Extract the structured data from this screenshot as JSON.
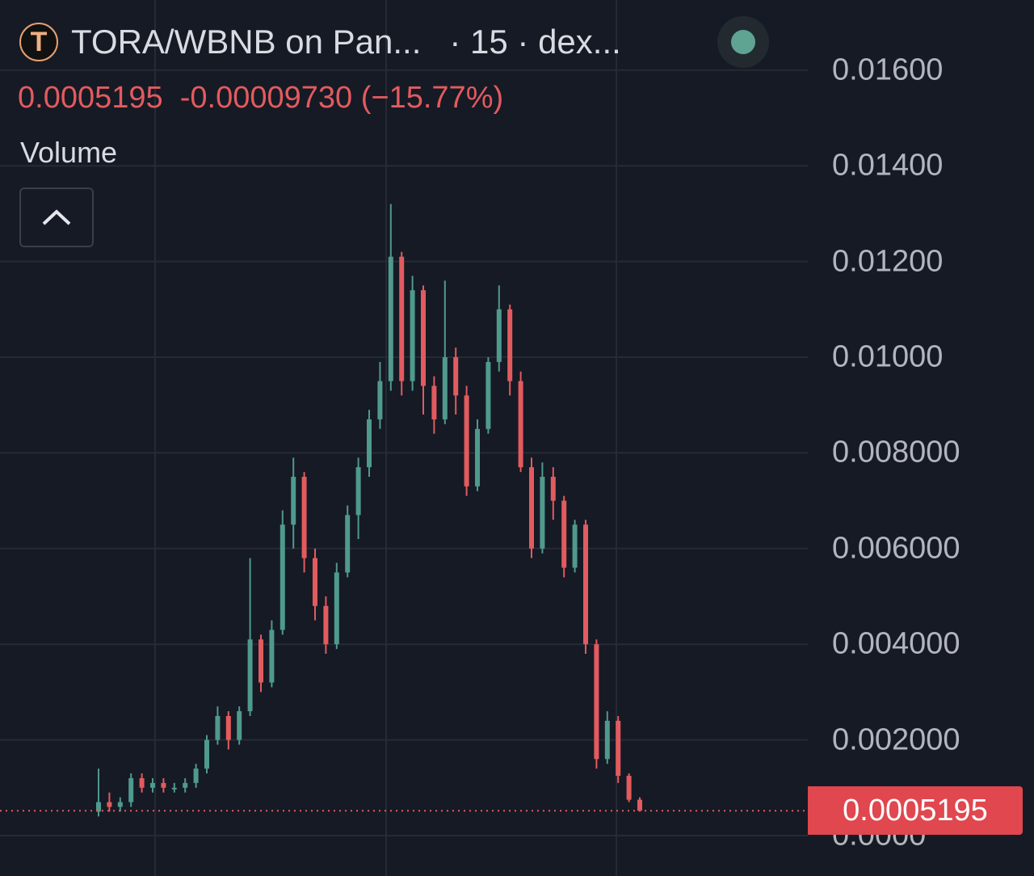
{
  "header": {
    "title": "TORA/WBNB on Pan...   · 15 · dex...",
    "logo_letter": "T",
    "status": "live"
  },
  "quote": {
    "last": "0.0005195",
    "change": "-0.00009730",
    "change_pct": "(−15.77%)",
    "color": "#e25b5e"
  },
  "volume_label": "Volume",
  "collapse_icon": "chevron-up-icon",
  "chart_data": {
    "type": "candlestick",
    "title": "TORA/WBNB",
    "interval": "15",
    "y_ticks": [
      "0.01600",
      "0.01400",
      "0.01200",
      "0.01000",
      "0.008000",
      "0.006000",
      "0.004000",
      "0.002000",
      "0.0000"
    ],
    "y_tick_values": [
      0.016,
      0.014,
      0.012,
      0.01,
      0.008,
      0.006,
      0.004,
      0.002,
      0
    ],
    "ylim": [
      0,
      0.0173
    ],
    "grid": true,
    "up_color": "#4f9a8c",
    "down_color": "#e25b5e",
    "last_price": 0.0005195,
    "last_price_label": "0.0005195",
    "candles_ohlc": [
      [
        0.0005,
        0.0014,
        0.0004,
        0.0007
      ],
      [
        0.0007,
        0.0009,
        0.0005,
        0.0006
      ],
      [
        0.0006,
        0.0008,
        0.0005,
        0.0007
      ],
      [
        0.0007,
        0.0013,
        0.0006,
        0.0012
      ],
      [
        0.0012,
        0.0013,
        0.0009,
        0.001
      ],
      [
        0.001,
        0.0012,
        0.0009,
        0.0011
      ],
      [
        0.0011,
        0.0012,
        0.0009,
        0.001
      ],
      [
        0.001,
        0.0011,
        0.0009,
        0.001
      ],
      [
        0.001,
        0.0012,
        0.0009,
        0.0011
      ],
      [
        0.0011,
        0.0015,
        0.001,
        0.0014
      ],
      [
        0.0014,
        0.0021,
        0.0013,
        0.002
      ],
      [
        0.002,
        0.0027,
        0.0019,
        0.0025
      ],
      [
        0.0025,
        0.0026,
        0.0018,
        0.002
      ],
      [
        0.002,
        0.0027,
        0.0019,
        0.0026
      ],
      [
        0.0026,
        0.0058,
        0.0025,
        0.0041
      ],
      [
        0.0041,
        0.0042,
        0.003,
        0.0032
      ],
      [
        0.0032,
        0.0045,
        0.0031,
        0.0043
      ],
      [
        0.0043,
        0.0068,
        0.0042,
        0.0065
      ],
      [
        0.0065,
        0.0079,
        0.006,
        0.0075
      ],
      [
        0.0075,
        0.0076,
        0.0055,
        0.0058
      ],
      [
        0.0058,
        0.006,
        0.0045,
        0.0048
      ],
      [
        0.0048,
        0.005,
        0.0038,
        0.004
      ],
      [
        0.004,
        0.0057,
        0.0039,
        0.0055
      ],
      [
        0.0055,
        0.0069,
        0.0054,
        0.0067
      ],
      [
        0.0067,
        0.0079,
        0.0062,
        0.0077
      ],
      [
        0.0077,
        0.0089,
        0.0075,
        0.0087
      ],
      [
        0.0087,
        0.0099,
        0.0085,
        0.0095
      ],
      [
        0.0095,
        0.0132,
        0.0093,
        0.0121
      ],
      [
        0.0121,
        0.0122,
        0.0092,
        0.0095
      ],
      [
        0.0095,
        0.0117,
        0.0093,
        0.0114
      ],
      [
        0.0114,
        0.0115,
        0.0088,
        0.0094
      ],
      [
        0.0094,
        0.0096,
        0.0084,
        0.0087
      ],
      [
        0.0087,
        0.0116,
        0.0086,
        0.01
      ],
      [
        0.01,
        0.0102,
        0.0088,
        0.0092
      ],
      [
        0.0092,
        0.0094,
        0.0071,
        0.0073
      ],
      [
        0.0073,
        0.0087,
        0.0072,
        0.0085
      ],
      [
        0.0085,
        0.01,
        0.0084,
        0.0099
      ],
      [
        0.0099,
        0.0115,
        0.0097,
        0.011
      ],
      [
        0.011,
        0.0111,
        0.0092,
        0.0095
      ],
      [
        0.0095,
        0.0097,
        0.0076,
        0.0077
      ],
      [
        0.0077,
        0.0079,
        0.0058,
        0.006
      ],
      [
        0.006,
        0.0078,
        0.0059,
        0.0075
      ],
      [
        0.0075,
        0.0077,
        0.0066,
        0.007
      ],
      [
        0.007,
        0.0071,
        0.0054,
        0.0056
      ],
      [
        0.0056,
        0.0066,
        0.0055,
        0.0065
      ],
      [
        0.0065,
        0.0066,
        0.0038,
        0.004
      ],
      [
        0.004,
        0.0041,
        0.0014,
        0.0016
      ],
      [
        0.0016,
        0.0026,
        0.0015,
        0.0024
      ],
      [
        0.0024,
        0.0025,
        0.0011,
        0.00125
      ],
      [
        0.00125,
        0.0013,
        0.0007,
        0.00075
      ],
      [
        0.00075,
        0.0008,
        0.0005,
        0.0005195
      ]
    ]
  }
}
